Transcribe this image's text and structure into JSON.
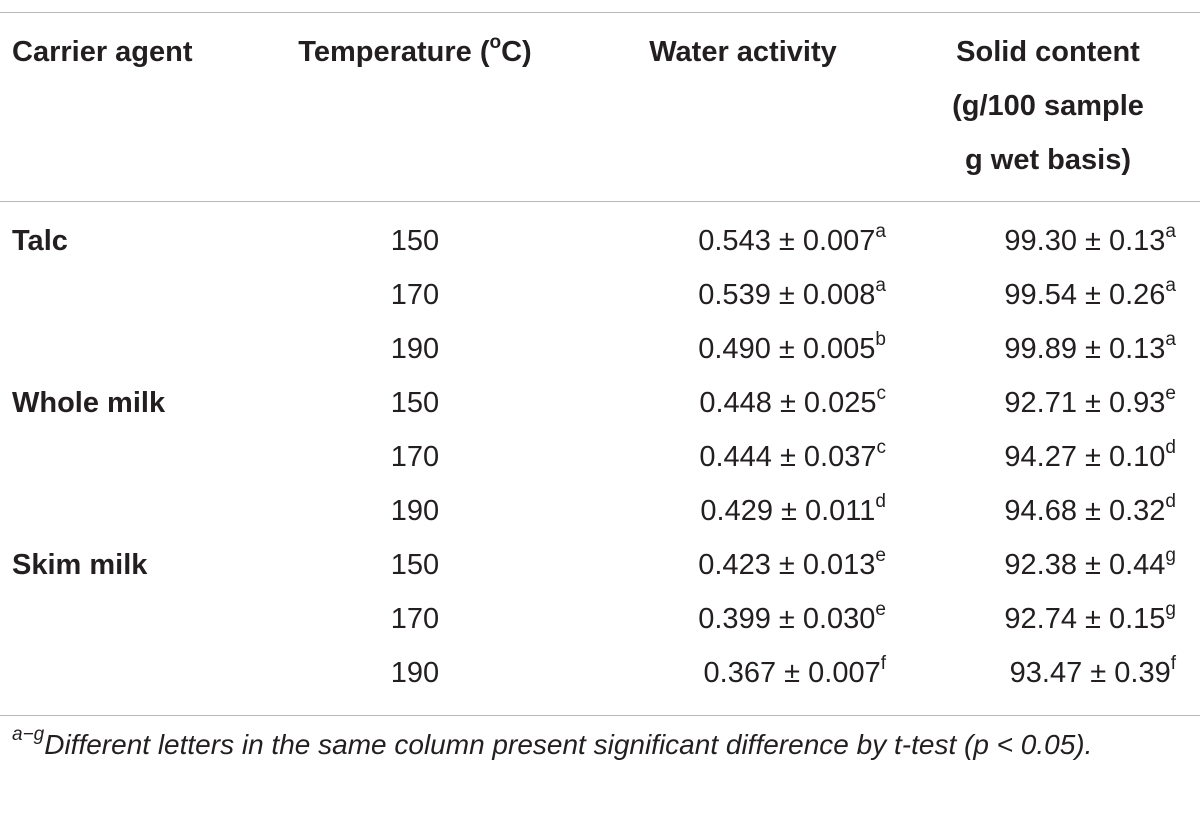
{
  "table": {
    "header": [
      {
        "text": "Carrier agent"
      },
      {
        "before": "Temperature (",
        "sup": "o",
        "after": "C)"
      },
      {
        "text": "Water activity"
      },
      {
        "lines": [
          "Solid content",
          "(g/100 sample",
          "g wet basis)"
        ]
      }
    ],
    "rows": [
      [
        "Talc",
        "150",
        {
          "text": "0.543 ± 0.007",
          "sup": "a"
        },
        {
          "text": "99.30 ± 0.13",
          "sup": "a"
        }
      ],
      [
        null,
        "170",
        {
          "text": "0.539 ± 0.008",
          "sup": "a"
        },
        {
          "text": "99.54 ± 0.26",
          "sup": "a"
        }
      ],
      [
        null,
        "190",
        {
          "text": "0.490 ± 0.005",
          "sup": "b"
        },
        {
          "text": "99.89 ± 0.13",
          "sup": "a"
        }
      ],
      [
        "Whole milk",
        "150",
        {
          "text": "0.448 ± 0.025",
          "sup": "c"
        },
        {
          "text": "92.71 ± 0.93",
          "sup": "e"
        }
      ],
      [
        null,
        "170",
        {
          "text": "0.444 ± 0.037",
          "sup": "c"
        },
        {
          "text": "94.27 ± 0.10",
          "sup": "d"
        }
      ],
      [
        null,
        "190",
        {
          "text": "0.429 ± 0.011",
          "sup": "d"
        },
        {
          "text": "94.68 ± 0.32",
          "sup": "d"
        }
      ],
      [
        "Skim milk",
        "150",
        {
          "text": "0.423 ± 0.013",
          "sup": "e"
        },
        {
          "text": "92.38 ± 0.44",
          "sup": "g"
        }
      ],
      [
        null,
        "170",
        {
          "text": "0.399 ± 0.030",
          "sup": "e"
        },
        {
          "text": "92.74 ± 0.15",
          "sup": "g"
        }
      ],
      [
        null,
        "190",
        {
          "text": "0.367 ± 0.007",
          "sup": "f"
        },
        {
          "text": "93.47 ± 0.39",
          "sup": "f"
        }
      ]
    ],
    "footnote": {
      "sup": "a−g",
      "text": "Different letters in the same column present significant difference by t-test (p < 0.05)."
    }
  }
}
